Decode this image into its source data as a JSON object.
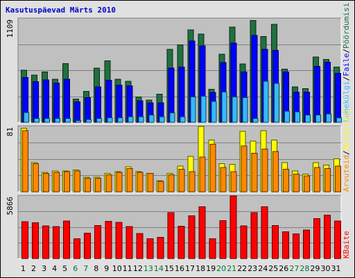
{
  "chart_data": {
    "type": "bar",
    "title": "Kasutuspäevad Märts 2010",
    "categories": [
      "1",
      "2",
      "3",
      "4",
      "5",
      "6",
      "7",
      "8",
      "9",
      "10",
      "11",
      "12",
      "13",
      "14",
      "15",
      "16",
      "17",
      "18",
      "19",
      "20",
      "21",
      "22",
      "23",
      "24",
      "25",
      "26",
      "27",
      "28",
      "29",
      "30",
      "31"
    ],
    "weekend_days": [
      "6",
      "7",
      "13",
      "14",
      "20",
      "21",
      "27",
      "28"
    ],
    "colors": {
      "title": "#0000cc",
      "weekday_label": "#000000",
      "weekend_label": "#007733",
      "pages": "#207040",
      "files": "#0000ff",
      "hits": "#33bbff",
      "visits": "#ffff00",
      "sites": "#ff8800",
      "kbytes": "#ff0000",
      "panel": "#c0c0c0"
    },
    "panels": [
      {
        "name": "requests",
        "ymax_label": "1109",
        "ylim": [
          0,
          1109
        ],
        "legend": [
          {
            "label": "Pöördumisi",
            "color": "#207040"
          },
          {
            "label": "Faile",
            "color": "#0000ff"
          },
          {
            "label": "Lehekülgi",
            "color": "#33bbff"
          }
        ],
        "series": [
          {
            "name": "Pöördumisi",
            "values": [
              560,
              505,
              540,
              460,
              630,
              250,
              330,
              580,
              660,
              460,
              440,
              270,
              240,
              300,
              780,
              830,
              990,
              945,
              355,
              730,
              1020,
              625,
              1090,
              920,
              1050,
              570,
              380,
              360,
              700,
              675,
              590
            ]
          },
          {
            "name": "Faile",
            "values": [
              480,
              435,
              455,
              420,
              460,
              220,
              265,
              380,
              450,
              400,
              390,
              230,
              210,
              210,
              580,
              590,
              870,
              820,
              320,
              640,
              850,
              540,
              930,
              780,
              770,
              540,
              325,
              325,
              600,
              645,
              525
            ]
          },
          {
            "name": "Lehekülgi",
            "values": [
              105,
              40,
              40,
              40,
              40,
              20,
              30,
              40,
              50,
              50,
              60,
              60,
              80,
              60,
              100,
              60,
              270,
              280,
              225,
              325,
              270,
              265,
              40,
              440,
              415,
              120,
              110,
              80,
              80,
              90,
              50
            ]
          }
        ]
      },
      {
        "name": "visits",
        "ymax_label": "81",
        "ylim": [
          0,
          81
        ],
        "legend": [
          {
            "label": "Külastusi",
            "color": "#ffff00"
          },
          {
            "label": "Arvuteid",
            "color": "#ff8800"
          }
        ],
        "series": [
          {
            "name": "Külastusi",
            "values": [
              79,
              36,
              24,
              26,
              26,
              27,
              18,
              18,
              23,
              25,
              31,
              25,
              23,
              14,
              23,
              32,
              44,
              81,
              64,
              35,
              34,
              75,
              63,
              76,
              64,
              36,
              26,
              22,
              36,
              33,
              41
            ]
          },
          {
            "name": "Arvuteid",
            "values": [
              76,
              35,
              23,
              24,
              25,
              26,
              17,
              17,
              21,
              24,
              29,
              24,
              23,
              13,
              21,
              28,
              25,
              43,
              59,
              30,
              25,
              57,
              48,
              53,
              50,
              28,
              22,
              20,
              30,
              29,
              32
            ]
          }
        ]
      },
      {
        "name": "kbytes",
        "ymax_label": "5866",
        "ylim": [
          0,
          5866
        ],
        "legend": [
          {
            "label": "KBaite",
            "color": "#ff0000"
          }
        ],
        "series": [
          {
            "name": "KBaite",
            "values": [
              3450,
              3370,
              3060,
              3000,
              3520,
              1850,
              2370,
              3100,
              3500,
              3400,
              3010,
              2350,
              1850,
              2000,
              4300,
              3030,
              4000,
              4870,
              1850,
              3550,
              5866,
              3060,
              4300,
              4870,
              3080,
              2520,
              2320,
              2680,
              3760,
              4080,
              3530
            ]
          }
        ]
      }
    ]
  }
}
